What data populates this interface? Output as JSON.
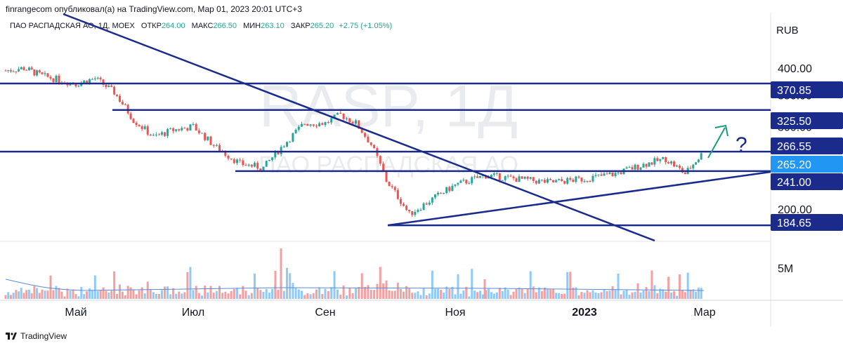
{
  "attribution": "finrangecom опубликовал(а) на TradingView.com, Мар 01, 2023 20:01 UTC+3",
  "legend": {
    "symbol": "ПАО РАСПАДСКАЯ АО, 1Д, MOEX",
    "open_label": "ОТКР",
    "open": "264.00",
    "high_label": "МАКС",
    "high": "266.50",
    "low_label": "МИН",
    "low": "263.10",
    "close_label": "ЗАКР",
    "close": "265.20",
    "change": "+2.75 (+1.05%)"
  },
  "watermark": {
    "ticker": "RASP, 1Д",
    "name": "ПАО РАСПАДСКАЯ АО"
  },
  "footer": {
    "brand": "TradingView"
  },
  "colors": {
    "up": "#26a69a",
    "down": "#ef5350",
    "vol_up": "#90caf9",
    "vol_down": "#f4a0a0",
    "levels": "#1a2b8c",
    "arrow": "#1a9c7a",
    "last_price": "#2196f3",
    "vol_ma": "#5b8bd9"
  },
  "chart_data": {
    "type": "candlestick",
    "y_axis": {
      "unit": "RUB",
      "scale": "log",
      "ticks": [
        "200.00",
        "250.00",
        "300.00",
        "350.00",
        "400.00"
      ]
    },
    "x_axis": {
      "ticks": [
        "Май",
        "Июл",
        "Сен",
        "Ноя",
        "2023",
        "Мар"
      ]
    },
    "volume_axis": {
      "ticks": [
        "5M"
      ]
    },
    "price_labels": [
      "370.85",
      "325.50",
      "266.55",
      "265.20",
      "241.00",
      "184.65"
    ],
    "last_price": 265.2,
    "horizontal_levels": [
      370.85,
      325.5,
      265.2,
      241.0,
      184.65
    ],
    "trendlines": [
      {
        "name": "descending",
        "from": [
          "апр",
          440
        ],
        "to": [
          "фев",
          152
        ]
      },
      {
        "name": "ascending",
        "from": [
          "окт",
          184.65
        ],
        "to": [
          "мар",
          256
        ]
      }
    ],
    "annotation": "?",
    "price_path": [
      [
        "апр",
        395
      ],
      [
        "апр",
        400
      ],
      [
        "апр",
        385
      ],
      [
        "май",
        370
      ],
      [
        "май",
        380
      ],
      [
        "май",
        355
      ],
      [
        "июн",
        310
      ],
      [
        "июн",
        285
      ],
      [
        "июн",
        295
      ],
      [
        "июл",
        300
      ],
      [
        "июл",
        270
      ],
      [
        "июл",
        250
      ],
      [
        "авг",
        245
      ],
      [
        "авг",
        275
      ],
      [
        "авг",
        305
      ],
      [
        "сен",
        305
      ],
      [
        "сен",
        318
      ],
      [
        "сен",
        305
      ],
      [
        "сен",
        275
      ],
      [
        "окт",
        230
      ],
      [
        "окт",
        195
      ],
      [
        "окт",
        210
      ],
      [
        "ноя",
        225
      ],
      [
        "ноя",
        236
      ],
      [
        "дек",
        232
      ],
      [
        "дек",
        228
      ],
      [
        "янв",
        232
      ],
      [
        "янв",
        238
      ],
      [
        "фев",
        250
      ],
      [
        "фев",
        256
      ],
      [
        "фев",
        238
      ],
      [
        "мар",
        265
      ]
    ]
  }
}
